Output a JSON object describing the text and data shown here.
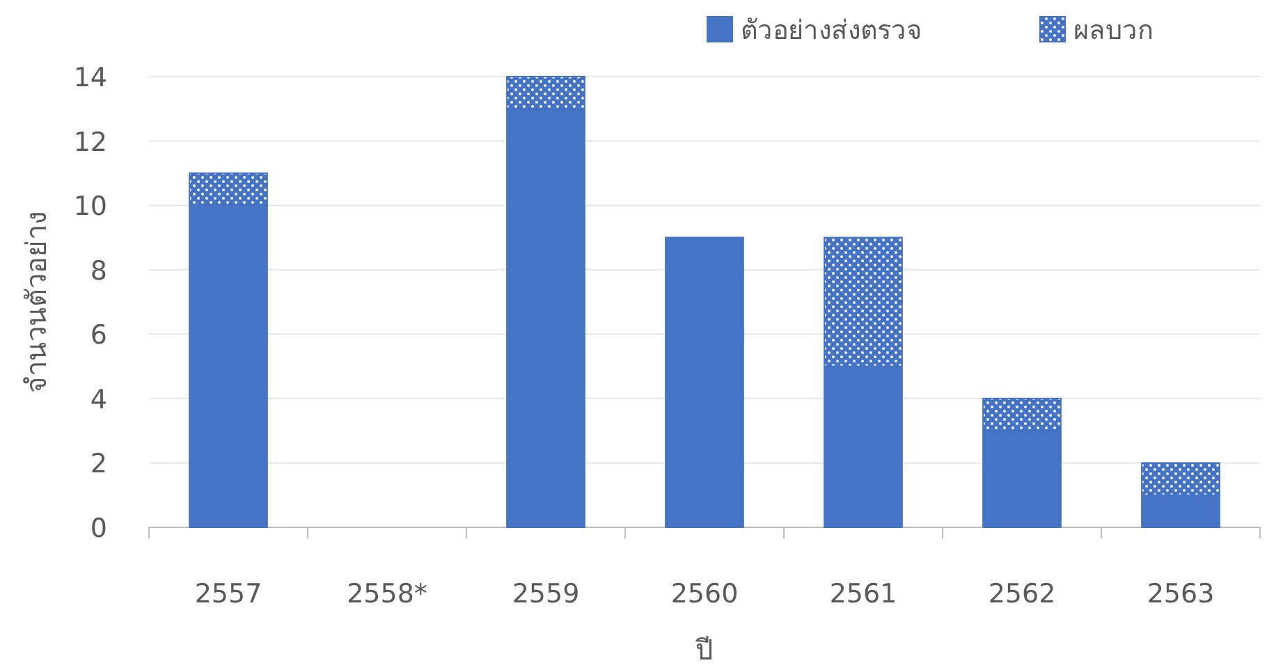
{
  "chart_data": {
    "type": "bar",
    "stacked": true,
    "xlabel": "ปี",
    "ylabel": "จำนวนตัวอย่าง",
    "categories": [
      "2557",
      "2558*",
      "2559",
      "2560",
      "2561",
      "2562",
      "2563"
    ],
    "series": [
      {
        "name": "ตัวอย่างส่งตรวจ",
        "color": "#4472c4",
        "values": [
          10,
          0,
          13,
          9,
          5,
          3,
          1
        ]
      },
      {
        "name": "ผลบวก",
        "color": "#4472c4",
        "values": [
          1,
          0,
          1,
          0,
          4,
          1,
          1
        ]
      }
    ],
    "ylim": [
      0,
      14
    ],
    "yticks": [
      0,
      2,
      4,
      6,
      8,
      10,
      12,
      14
    ],
    "grid": "y",
    "legend": "top right"
  }
}
